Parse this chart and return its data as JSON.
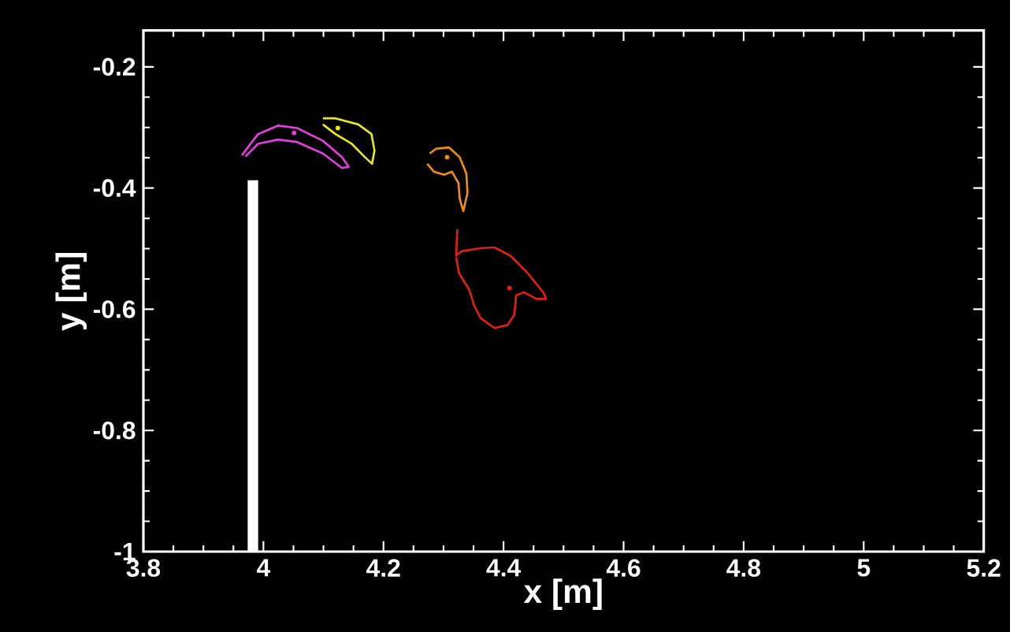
{
  "chart_data": {
    "type": "line",
    "xlabel": "x [m]",
    "ylabel": "y [m]",
    "xlim": [
      3.8,
      5.2
    ],
    "ylim": [
      -1,
      -0.14
    ],
    "xticks": [
      3.8,
      4,
      4.2,
      4.4,
      4.6,
      4.8,
      5,
      5.2
    ],
    "yticks": [
      -1,
      -0.8,
      -0.6,
      -0.4,
      -0.2
    ],
    "series": [
      {
        "type": "bar",
        "color": "#ffffff",
        "x": [
          3.9825
        ],
        "base": [
          -1
        ],
        "values": [
          0.613
        ]
      },
      {
        "color": "#e040e0",
        "x": [
          3.964,
          3.991,
          4.024,
          4.056,
          4.099,
          4.131,
          4.142,
          4.131,
          4.099,
          4.056,
          4.024,
          3.991,
          3.97
        ],
        "values": [
          -0.346,
          -0.311,
          -0.297,
          -0.301,
          -0.322,
          -0.349,
          -0.365,
          -0.367,
          -0.343,
          -0.324,
          -0.32,
          -0.327,
          -0.348
        ]
      },
      {
        "color": "#e8e820",
        "x": [
          4.099,
          4.12,
          4.158,
          4.18,
          4.185,
          4.181,
          4.169,
          4.147,
          4.12,
          4.099
        ],
        "values": [
          -0.285,
          -0.285,
          -0.295,
          -0.311,
          -0.338,
          -0.36,
          -0.349,
          -0.327,
          -0.311,
          -0.295
        ]
      },
      {
        "color": "#f08c14",
        "x": [
          4.277,
          4.288,
          4.309,
          4.327,
          4.338,
          4.34,
          4.333,
          4.327,
          4.325,
          4.314,
          4.301,
          4.284,
          4.273
        ],
        "values": [
          -0.343,
          -0.335,
          -0.333,
          -0.349,
          -0.376,
          -0.408,
          -0.438,
          -0.418,
          -0.392,
          -0.373,
          -0.378,
          -0.373,
          -0.36
        ]
      },
      {
        "color": "#e02010",
        "x": [
          4.323,
          4.321,
          4.331,
          4.364,
          4.385,
          4.412,
          4.439,
          4.466,
          4.471,
          4.455,
          4.434,
          4.421,
          4.418,
          4.407,
          4.385,
          4.362,
          4.351,
          4.343,
          4.326,
          4.321
        ],
        "values": [
          -0.468,
          -0.511,
          -0.504,
          -0.499,
          -0.498,
          -0.512,
          -0.539,
          -0.572,
          -0.583,
          -0.583,
          -0.572,
          -0.577,
          -0.609,
          -0.626,
          -0.631,
          -0.615,
          -0.594,
          -0.568,
          -0.541,
          -0.514
        ]
      },
      {
        "type": "scatter",
        "colors": [
          "#e040e0",
          "#e8e820",
          "#f08c14",
          "#e02010"
        ],
        "x": [
          4.051,
          4.124,
          4.306,
          4.41
        ],
        "values": [
          -0.309,
          -0.301,
          -0.349,
          -0.565
        ]
      }
    ]
  }
}
